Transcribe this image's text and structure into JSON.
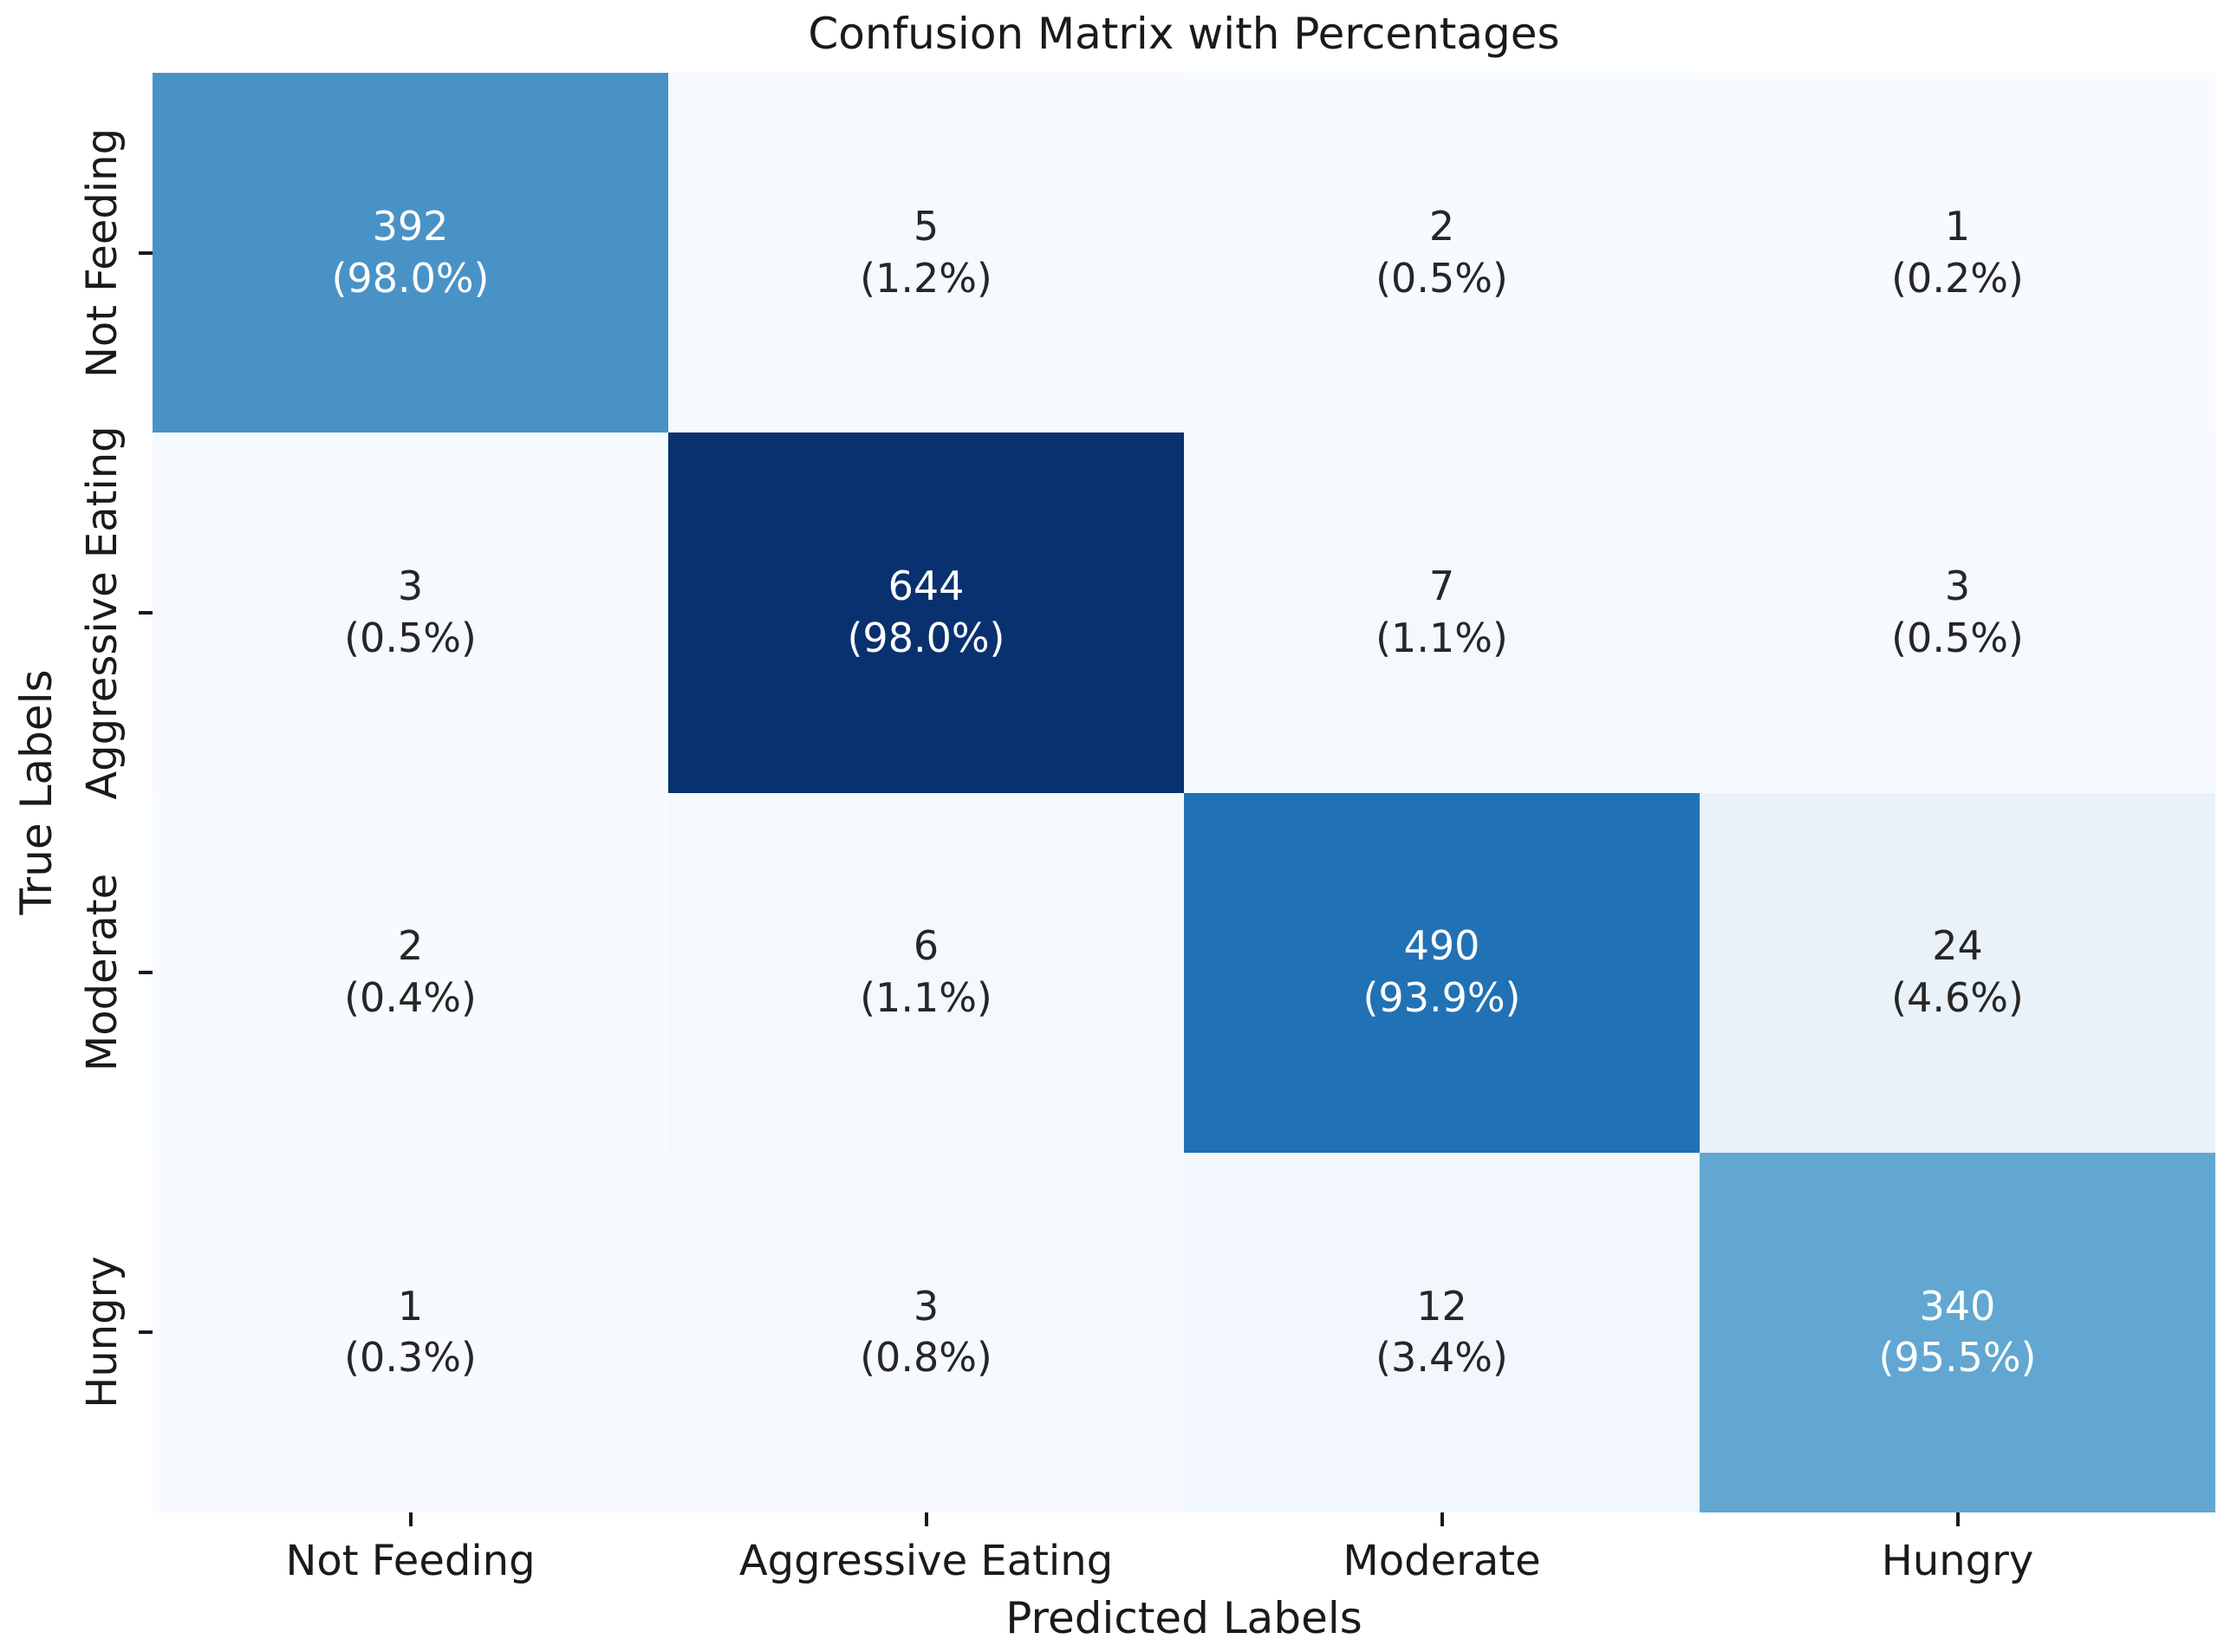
{
  "figure": {
    "title": "Confusion Matrix with Percentages",
    "xlabel": "Predicted Labels",
    "ylabel": "True Labels"
  },
  "chart_data": {
    "type": "heatmap",
    "title": "Confusion Matrix with Percentages",
    "xlabel": "Predicted Labels",
    "ylabel": "True Labels",
    "x_categories": [
      "Not Feeding",
      "Aggressive Eating",
      "Moderate",
      "Hungry"
    ],
    "y_categories": [
      "Not Feeding",
      "Aggressive Eating",
      "Moderate",
      "Hungry"
    ],
    "counts": [
      [
        392,
        5,
        2,
        1
      ],
      [
        3,
        644,
        7,
        3
      ],
      [
        2,
        6,
        490,
        24
      ],
      [
        1,
        3,
        12,
        340
      ]
    ],
    "percent_labels": [
      [
        "(98.0%)",
        "(1.2%)",
        "(0.5%)",
        "(0.2%)"
      ],
      [
        "(0.5%)",
        "(98.0%)",
        "(1.1%)",
        "(0.5%)"
      ],
      [
        "(0.4%)",
        "(1.1%)",
        "(93.9%)",
        "(4.6%)"
      ],
      [
        "(0.3%)",
        "(0.8%)",
        "(3.4%)",
        "(95.5%)"
      ]
    ],
    "cell_colors": [
      [
        "#4992c6",
        "#f6fafe",
        "#f6fbff",
        "#f7fbff"
      ],
      [
        "#f6fafe",
        "#0a316f",
        "#f4f9fe",
        "#f6fafe"
      ],
      [
        "#f6fbff",
        "#f4f9fe",
        "#2171b5",
        "#e9f1f9"
      ],
      [
        "#f7fbff",
        "#f6fafe",
        "#f1f7fd",
        "#61a7d2"
      ]
    ],
    "cell_text_colors": [
      [
        "#ffffff",
        "#262626",
        "#262626",
        "#262626"
      ],
      [
        "#262626",
        "#ffffff",
        "#262626",
        "#262626"
      ],
      [
        "#262626",
        "#262626",
        "#ffffff",
        "#262626"
      ],
      [
        "#262626",
        "#262626",
        "#262626",
        "#ffffff"
      ]
    ],
    "colormap": "Blues",
    "grid": false,
    "legend": "none",
    "axis_text_color": "#1a1a1a"
  }
}
